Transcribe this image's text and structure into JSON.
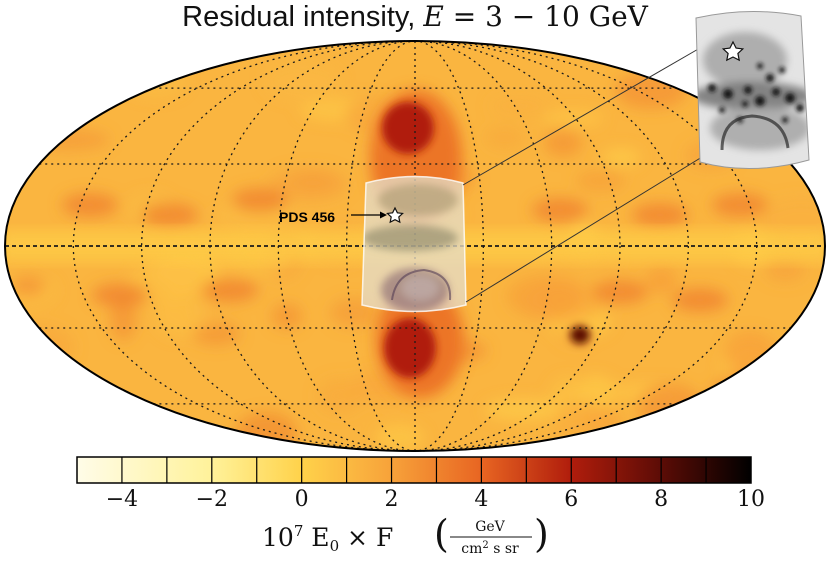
{
  "chart_data": {
    "type": "heatmap",
    "projection": "Mollweide all-sky",
    "title": {
      "prefix": "Residual intensity, ",
      "energy_var": "E",
      "energy_eq": " = 3 − 10",
      "energy_unit": " GeV"
    },
    "colorbar": {
      "min": -5,
      "max": 10,
      "ticks": [
        -4,
        -2,
        0,
        2,
        4,
        6,
        8,
        10
      ],
      "tick_labels": [
        "−4",
        "−2",
        "0",
        "2",
        "4",
        "6",
        "8",
        "10"
      ],
      "stops": [
        {
          "value": -5,
          "color": "#fffce8"
        },
        {
          "value": -2,
          "color": "#fff29a"
        },
        {
          "value": 0,
          "color": "#ffd24a"
        },
        {
          "value": 2,
          "color": "#f7a23a"
        },
        {
          "value": 4,
          "color": "#e86522"
        },
        {
          "value": 6,
          "color": "#b01d0c"
        },
        {
          "value": 8,
          "color": "#5c0c06"
        },
        {
          "value": 10,
          "color": "#000000"
        }
      ],
      "label": {
        "factor": "10",
        "exponent": "7",
        "main": " E",
        "sub": "0",
        "mult": " × F",
        "num": "GeV",
        "den_pre": "cm",
        "den_exp": "2",
        "den_post": " s sr"
      }
    },
    "map_background_value": 1.2,
    "features": [
      {
        "name": "north-bubble-lobe",
        "level": 6.0
      },
      {
        "name": "south-bubble-lobe",
        "level": 6.0
      },
      {
        "name": "bright-spot",
        "level": 8.0
      },
      {
        "name": "plane-band",
        "level": 0.2
      }
    ],
    "annotations": {
      "source_label": "PDS 456",
      "source_marker": "star",
      "inset": "zoom of galactic-center region (grayscale)"
    }
  },
  "palette": {
    "grid": "#1a1a1a",
    "frame": "#000000",
    "background": "#ffffff"
  }
}
